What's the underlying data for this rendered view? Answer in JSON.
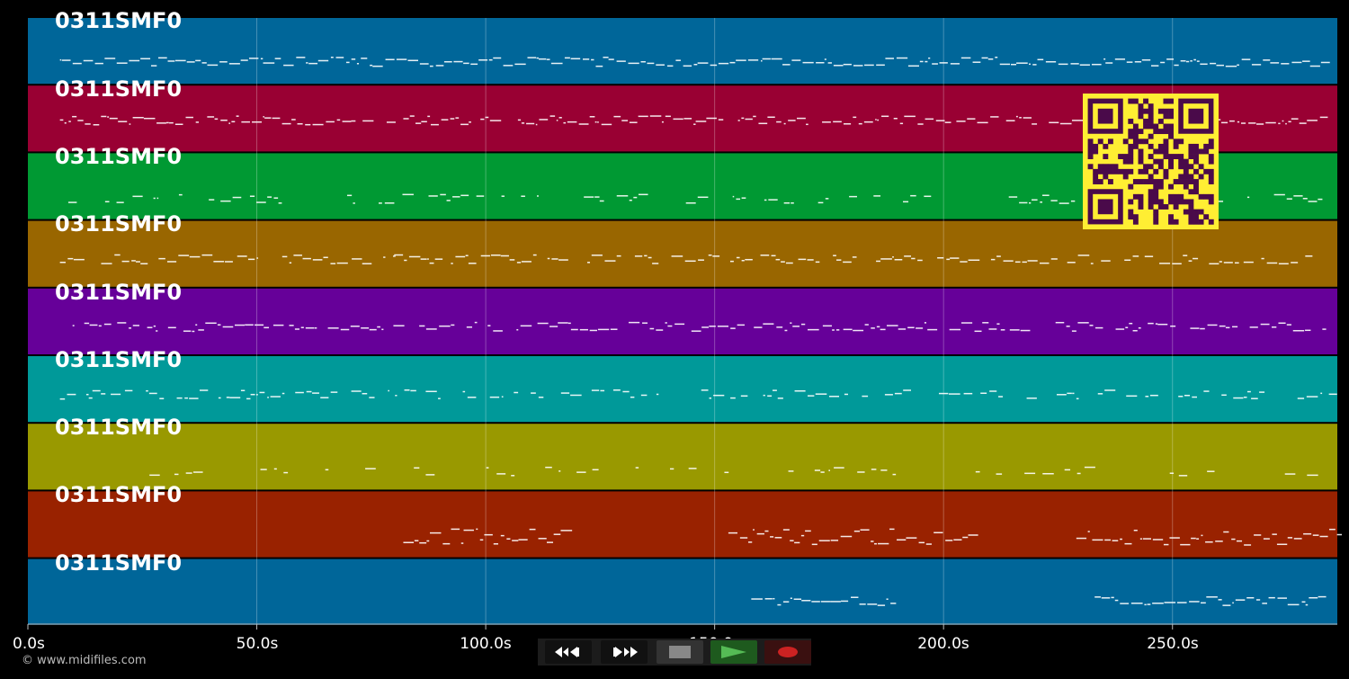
{
  "tracks": [
    {
      "label": "0311SMF0",
      "color": "#006699"
    },
    {
      "label": "0311SMF0",
      "color": "#990033"
    },
    {
      "label": "0311SMF0",
      "color": "#009933"
    },
    {
      "label": "0311SMF0",
      "color": "#996600"
    },
    {
      "label": "0311SMF0",
      "color": "#660099"
    },
    {
      "label": "0311SMF0",
      "color": "#009999"
    },
    {
      "label": "0311SMF0",
      "color": "#999900"
    },
    {
      "label": "0311SMF0",
      "color": "#992200"
    },
    {
      "label": "0311SMF0",
      "color": "#006699"
    }
  ],
  "timeline": {
    "duration_s": 286,
    "ticks": [
      {
        "t": 0,
        "label": "0.0s"
      },
      {
        "t": 50,
        "label": "50.0s"
      },
      {
        "t": 100,
        "label": "100.0s"
      },
      {
        "t": 150,
        "label": "150.0s"
      },
      {
        "t": 200,
        "label": "200.0s"
      },
      {
        "t": 250,
        "label": "250.0s"
      }
    ]
  },
  "credit": "© www.midifiles.com",
  "controls": {
    "rewind": "rewind-icon",
    "fast_forward": "fast-forward-icon",
    "stop": "stop-icon",
    "play": "play-icon",
    "record": "record-icon",
    "colors": {
      "play": "#44aa44",
      "record": "#cc2222",
      "stop": "#888888"
    }
  },
  "qr": {
    "fg": "#4a0a4a",
    "bg": "#ffee33"
  }
}
